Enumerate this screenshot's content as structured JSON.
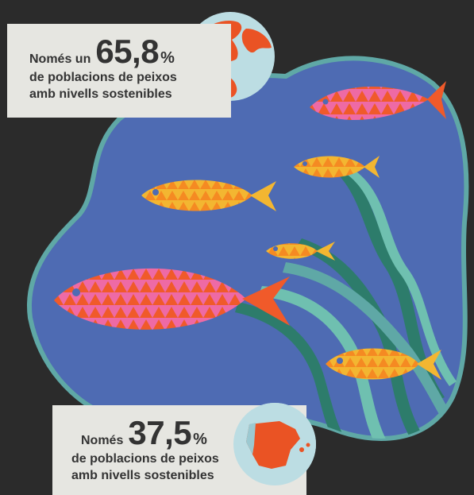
{
  "callouts": {
    "world": {
      "prefix": "Només un",
      "value": "65,8",
      "unit": "%",
      "line1": "de poblacions de peixos",
      "line2": "amb nivells sostenibles",
      "icon": "globe-icon"
    },
    "spain": {
      "prefix": "Només",
      "value": "37,5",
      "unit": "%",
      "line1": "de poblacions de peixos",
      "line2": "amb nivells sostenibles",
      "icon": "spain-map-icon"
    }
  },
  "colors": {
    "background": "#2b2b2b",
    "ocean": "#4e6bb3",
    "ocean_edge": "#5fa8a6",
    "card": "#e6e6e1",
    "pink_fish": "#ee6aa5",
    "pink_fish_pattern": "#f05a2a",
    "yellow_fish": "#f3b631",
    "yellow_fish_pattern": "#f58a22",
    "seaweed_dark": "#2d7c6b",
    "seaweed_light": "#6fc0b0",
    "globe_land": "#ea5324",
    "globe_water": "#bcdde3"
  }
}
